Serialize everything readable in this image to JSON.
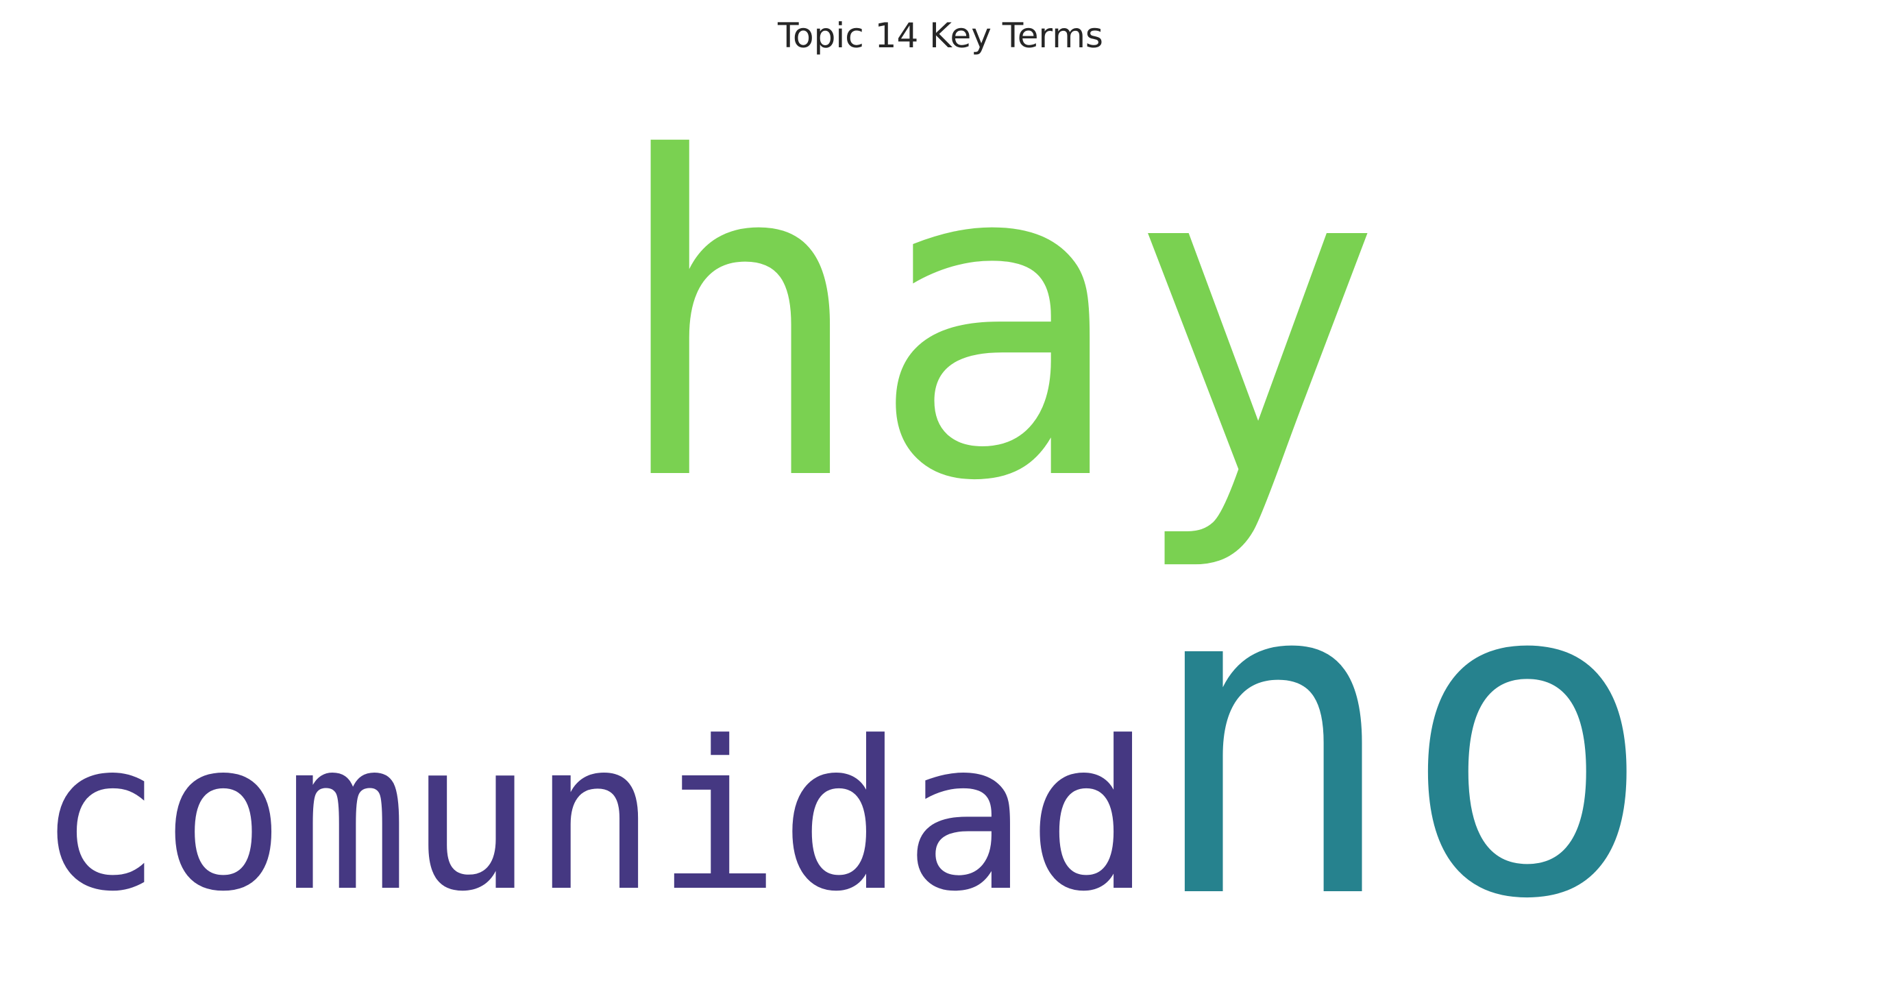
{
  "title": "Topic 14 Key Terms",
  "words": [
    {
      "text": "hay",
      "color": "#7ad151"
    },
    {
      "text": "no",
      "color": "#26828e"
    },
    {
      "text": "comunidad",
      "color": "#453882"
    }
  ]
}
